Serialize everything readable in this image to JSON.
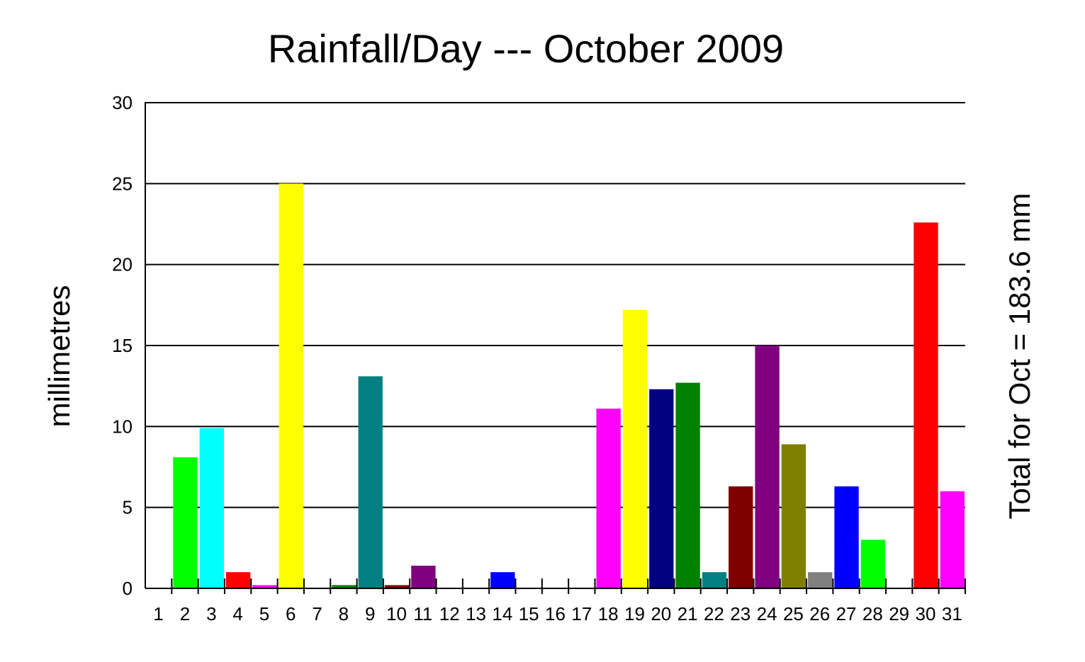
{
  "chart_data": {
    "type": "bar",
    "title": "Rainfall/Day --- October 2009",
    "ylabel": "millimetres",
    "right_label": "Total for Oct = 183.6 mm",
    "ylim": [
      0,
      30
    ],
    "yticks": [
      "0",
      "5",
      "10",
      "15",
      "20",
      "25",
      "30"
    ],
    "grid": true,
    "categories": [
      "1",
      "2",
      "3",
      "4",
      "5",
      "6",
      "7",
      "8",
      "9",
      "10",
      "11",
      "12",
      "13",
      "14",
      "15",
      "16",
      "17",
      "18",
      "19",
      "20",
      "21",
      "22",
      "23",
      "24",
      "25",
      "26",
      "27",
      "28",
      "29",
      "30",
      "31"
    ],
    "values": [
      0,
      8.1,
      9.9,
      1.0,
      0.2,
      25.0,
      0,
      0.2,
      13.1,
      0.2,
      1.4,
      0,
      0,
      1.0,
      0,
      0,
      0,
      11.1,
      17.2,
      12.3,
      12.7,
      1.0,
      6.3,
      15.0,
      8.9,
      1.0,
      6.3,
      3.0,
      0,
      22.6,
      6.0
    ],
    "colors": [
      "#000000",
      "#00ff00",
      "#00ffff",
      "#ff0000",
      "#ff00ff",
      "#ffff00",
      "#000000",
      "#008000",
      "#008080",
      "#800000",
      "#800080",
      "#000000",
      "#000000",
      "#0000ff",
      "#000000",
      "#000000",
      "#000000",
      "#ff00ff",
      "#ffff00",
      "#000080",
      "#008000",
      "#008080",
      "#800000",
      "#800080",
      "#808000",
      "#808080",
      "#0000ff",
      "#00ff00",
      "#000000",
      "#ff0000",
      "#ff00ff"
    ]
  }
}
